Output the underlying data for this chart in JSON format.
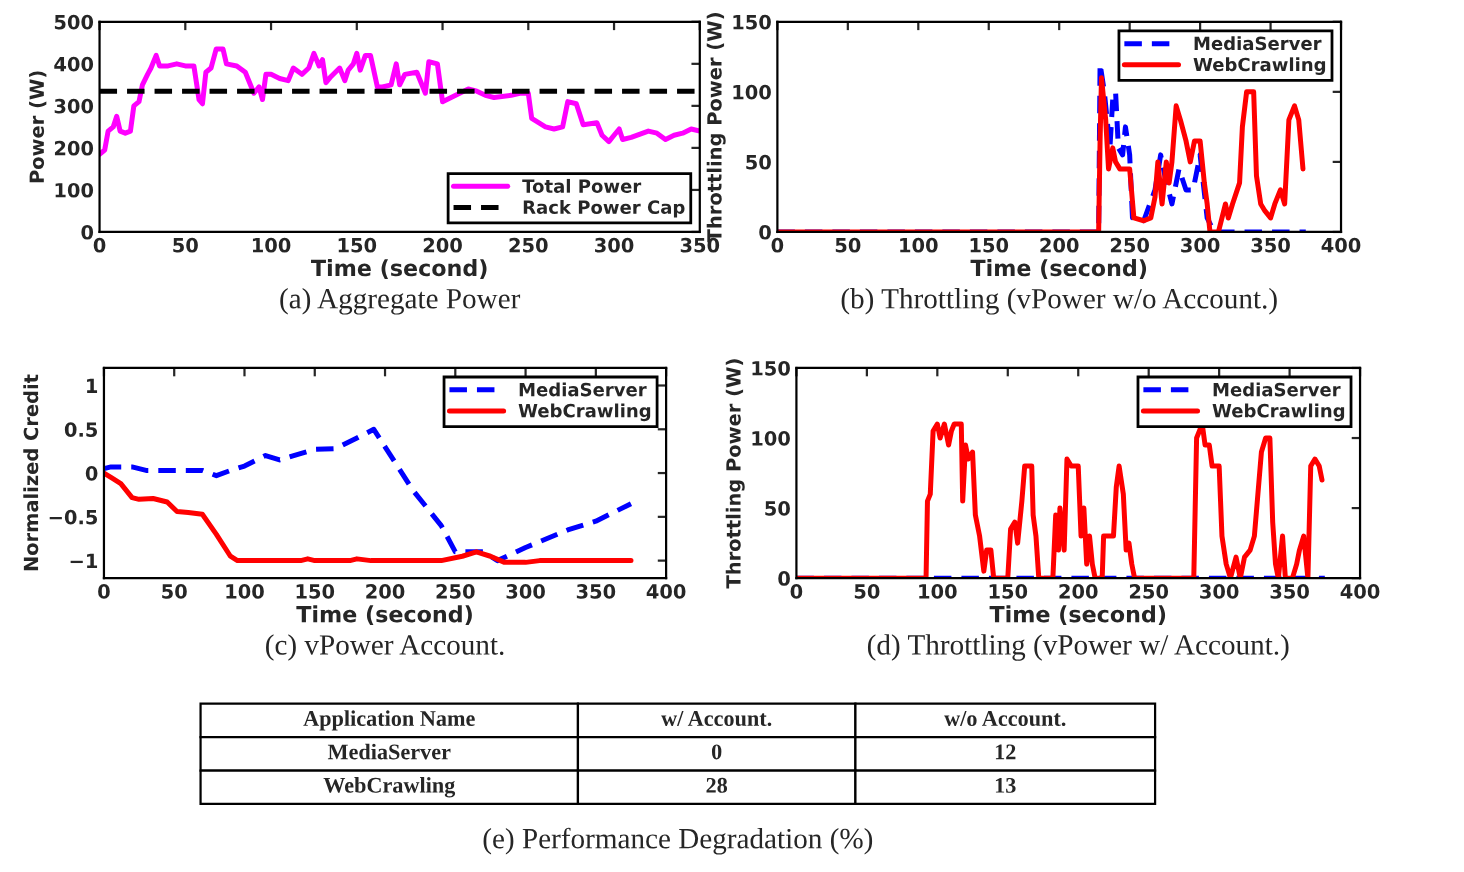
{
  "chart_data": [
    {
      "type": "line",
      "title": "(a) Aggregate Power",
      "xlabel": "Time (second)",
      "ylabel": "Power (W)",
      "xlim": [
        0,
        350
      ],
      "ylim": [
        0,
        500
      ],
      "xticks": [
        0,
        50,
        100,
        150,
        200,
        250,
        300,
        350
      ],
      "yticks": [
        0,
        100,
        200,
        300,
        400,
        500
      ],
      "legend": "bottom right",
      "ref_lines": [
        {
          "axis": "y",
          "value": 335,
          "label": "Rack Power Cap",
          "color": "#000000",
          "line_style": "dashed"
        }
      ],
      "series": [
        {
          "name": "Total Power",
          "color": "#ff00ff",
          "line_style": "solid",
          "x": [
            0,
            3,
            5,
            8,
            10,
            12,
            15,
            18,
            20,
            23,
            25,
            28,
            30,
            33,
            35,
            40,
            45,
            50,
            55,
            58,
            60,
            62,
            65,
            68,
            72,
            74,
            80,
            85,
            90,
            93,
            95,
            97,
            100,
            105,
            110,
            113,
            118,
            122,
            125,
            128,
            130,
            132,
            135,
            140,
            143,
            145,
            148,
            150,
            152,
            155,
            158,
            162,
            165,
            170,
            173,
            175,
            178,
            185,
            190,
            192,
            197,
            200,
            205,
            210,
            215,
            220,
            225,
            230,
            240,
            245,
            250,
            252,
            260,
            265,
            270,
            273,
            278,
            282,
            290,
            293,
            297,
            300,
            303,
            305,
            310,
            320,
            325,
            330,
            335,
            340,
            345,
            350
          ],
          "values": [
            185,
            195,
            240,
            250,
            275,
            240,
            235,
            240,
            300,
            310,
            350,
            375,
            390,
            420,
            395,
            395,
            400,
            395,
            395,
            315,
            305,
            380,
            390,
            435,
            435,
            400,
            395,
            380,
            330,
            345,
            315,
            375,
            375,
            365,
            360,
            390,
            375,
            390,
            425,
            395,
            410,
            355,
            370,
            390,
            360,
            385,
            400,
            425,
            385,
            420,
            420,
            345,
            345,
            350,
            400,
            350,
            375,
            380,
            330,
            405,
            400,
            310,
            320,
            330,
            340,
            335,
            325,
            320,
            325,
            330,
            330,
            270,
            250,
            245,
            250,
            310,
            305,
            255,
            260,
            230,
            215,
            230,
            245,
            220,
            225,
            240,
            235,
            220,
            230,
            235,
            245,
            240
          ]
        }
      ]
    },
    {
      "type": "line",
      "title": "(b) Throttling (vPower w/o Account.)",
      "xlabel": "Time (second)",
      "ylabel": "Throttling Power (W)",
      "xlim": [
        0,
        400
      ],
      "ylim": [
        0,
        150
      ],
      "xticks": [
        0,
        50,
        100,
        150,
        200,
        250,
        300,
        350,
        400
      ],
      "yticks": [
        0,
        50,
        100,
        150
      ],
      "legend": "top right",
      "series": [
        {
          "name": "MediaServer",
          "color": "#0000ff",
          "line_style": "dashed",
          "x": [
            0,
            228,
            229,
            232,
            236,
            238,
            240,
            242,
            245,
            247,
            250,
            252,
            260,
            268,
            272,
            275,
            280,
            285,
            290,
            295,
            300,
            305,
            310,
            375
          ],
          "values": [
            0,
            0,
            120,
            100,
            60,
            95,
            100,
            60,
            55,
            75,
            55,
            10,
            8,
            30,
            55,
            40,
            20,
            45,
            30,
            30,
            55,
            10,
            0,
            0
          ]
        },
        {
          "name": "WebCrawling",
          "color": "#ff0000",
          "line_style": "solid",
          "x": [
            0,
            228,
            229,
            230,
            233,
            235,
            238,
            240,
            243,
            250,
            253,
            260,
            265,
            268,
            270,
            273,
            276,
            278,
            280,
            283,
            286,
            290,
            293,
            296,
            300,
            303,
            305,
            307,
            313,
            318,
            320,
            323,
            328,
            330,
            333,
            338,
            340,
            343,
            346,
            350,
            353,
            357,
            360,
            363,
            367,
            370,
            373
          ],
          "values": [
            0,
            0,
            65,
            110,
            80,
            45,
            60,
            50,
            45,
            45,
            10,
            8,
            10,
            25,
            50,
            20,
            50,
            35,
            50,
            90,
            80,
            65,
            50,
            65,
            65,
            35,
            20,
            0,
            0,
            20,
            10,
            20,
            35,
            75,
            100,
            100,
            40,
            20,
            15,
            10,
            20,
            30,
            20,
            80,
            90,
            80,
            45
          ]
        }
      ]
    },
    {
      "type": "line",
      "title": "(c) vPower Account.",
      "xlabel": "Time (second)",
      "ylabel": "Normalized Credit",
      "xlim": [
        0,
        400
      ],
      "ylim": [
        -1.2,
        1.2
      ],
      "xticks": [
        0,
        50,
        100,
        150,
        200,
        250,
        300,
        350,
        400
      ],
      "yticks": [
        {
          "value": -1,
          "label": "−1"
        },
        {
          "value": -0.5,
          "label": "−0.5"
        },
        0,
        0.5,
        1
      ],
      "legend": "top right",
      "series": [
        {
          "name": "MediaServer",
          "color": "#0000ff",
          "line_style": "dashed",
          "x": [
            0,
            5,
            20,
            30,
            50,
            70,
            80,
            90,
            100,
            115,
            125,
            135,
            150,
            165,
            180,
            192,
            200,
            220,
            240,
            250,
            265,
            270,
            280,
            300,
            330,
            350,
            375
          ],
          "values": [
            0.05,
            0.07,
            0.07,
            0.03,
            0.03,
            0.03,
            -0.03,
            0.03,
            0.08,
            0.2,
            0.15,
            0.2,
            0.27,
            0.28,
            0.4,
            0.5,
            0.3,
            -0.2,
            -0.6,
            -0.9,
            -0.9,
            -0.9,
            -1.0,
            -0.85,
            -0.65,
            -0.55,
            -0.35
          ]
        },
        {
          "name": "WebCrawling",
          "color": "#ff0000",
          "line_style": "solid",
          "x": [
            0,
            5,
            12,
            20,
            25,
            35,
            45,
            52,
            60,
            70,
            80,
            90,
            95,
            140,
            145,
            150,
            175,
            180,
            190,
            240,
            255,
            265,
            275,
            285,
            300,
            310,
            375
          ],
          "values": [
            0,
            -0.05,
            -0.12,
            -0.28,
            -0.3,
            -0.29,
            -0.33,
            -0.44,
            -0.45,
            -0.47,
            -0.7,
            -0.95,
            -1.0,
            -1.0,
            -0.98,
            -1.0,
            -1.0,
            -0.98,
            -1.0,
            -1.0,
            -0.95,
            -0.9,
            -0.95,
            -1.02,
            -1.02,
            -1.0,
            -1.0
          ]
        }
      ]
    },
    {
      "type": "line",
      "title": "(d) Throttling (vPower w/ Account.)",
      "xlabel": "Time (second)",
      "ylabel": "Throttling Power (W)",
      "xlim": [
        0,
        400
      ],
      "ylim": [
        0,
        150
      ],
      "xticks": [
        0,
        50,
        100,
        150,
        200,
        250,
        300,
        350,
        400
      ],
      "yticks": [
        0,
        50,
        100,
        150
      ],
      "legend": "top right",
      "series": [
        {
          "name": "MediaServer",
          "color": "#0000ff",
          "line_style": "dashed",
          "x": [
            0,
            375
          ],
          "values": [
            0,
            0
          ]
        },
        {
          "name": "WebCrawling",
          "color": "#ff0000",
          "line_style": "solid",
          "x": [
            0,
            92,
            93,
            95,
            97,
            100,
            102,
            105,
            108,
            110,
            112,
            117,
            118,
            120,
            122,
            125,
            127,
            130,
            133,
            135,
            138,
            140,
            150,
            152,
            155,
            157,
            160,
            162,
            167,
            168,
            170,
            172,
            182,
            184,
            186,
            187,
            190,
            192,
            195,
            200,
            202,
            204,
            206,
            208,
            210,
            212,
            217,
            218,
            225,
            227,
            229,
            232,
            234,
            236,
            238,
            240,
            282,
            284,
            288,
            290,
            293,
            295,
            300,
            302,
            305,
            308,
            312,
            315,
            318,
            322,
            325,
            330,
            333,
            336,
            338,
            340,
            342,
            345,
            347,
            352,
            355,
            357,
            360,
            363,
            365,
            368,
            371,
            373
          ],
          "values": [
            0,
            0,
            55,
            60,
            105,
            110,
            100,
            110,
            95,
            105,
            110,
            110,
            55,
            95,
            85,
            90,
            45,
            30,
            5,
            20,
            20,
            0,
            0,
            35,
            40,
            25,
            55,
            80,
            80,
            45,
            30,
            0,
            0,
            45,
            20,
            50,
            20,
            85,
            80,
            80,
            30,
            50,
            10,
            30,
            10,
            0,
            0,
            30,
            30,
            65,
            80,
            60,
            20,
            25,
            10,
            0,
            0,
            100,
            110,
            95,
            95,
            80,
            80,
            30,
            10,
            0,
            15,
            0,
            15,
            20,
            30,
            90,
            100,
            100,
            40,
            10,
            0,
            30,
            0,
            0,
            10,
            20,
            30,
            0,
            80,
            85,
            80,
            70
          ]
        }
      ]
    },
    {
      "type": "other",
      "title": "(e) Performance Degradation (%)",
      "ylabel": "Application Name",
      "categories": [
        "MediaServer",
        "WebCrawling"
      ],
      "data_labels": true,
      "series": [
        {
          "name": "w/ Account.",
          "values": [
            0,
            28
          ]
        },
        {
          "name": "w/o Account.",
          "values": [
            12,
            13
          ]
        }
      ]
    }
  ]
}
